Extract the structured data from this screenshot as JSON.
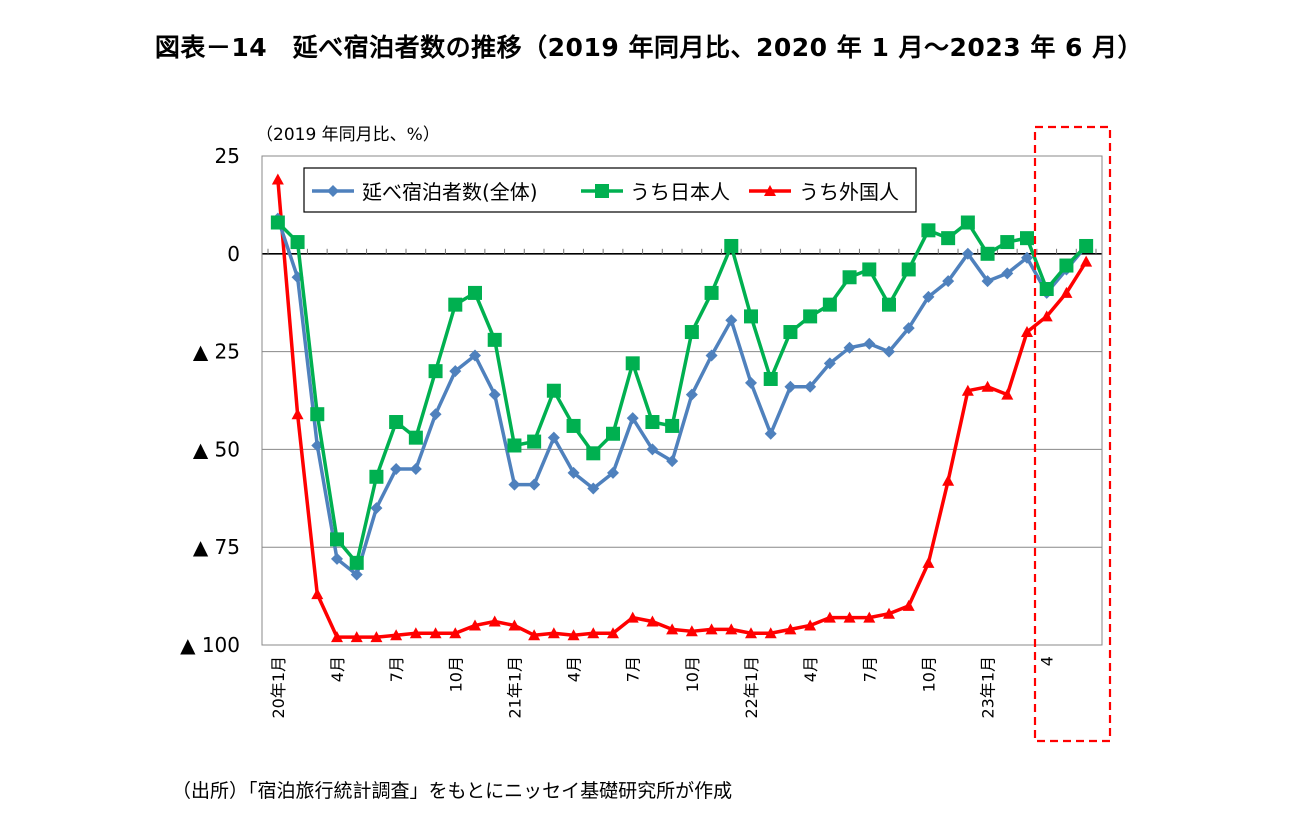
{
  "title": "図表－14　延べ宿泊者数の推移（2019 年同月比、2020 年 1 月～2023 年 6 月）",
  "source": "（出所）「宿泊旅行統計調査」をもとにニッセイ基礎研究所が作成",
  "chart_data": {
    "type": "line",
    "unit_label": "（2019 年同月比、%）",
    "x": [
      "20年1月",
      "2月",
      "3月",
      "4月",
      "5月",
      "6月",
      "7月",
      "8月",
      "9月",
      "10月",
      "11月",
      "12月",
      "21年1月",
      "2月",
      "3月",
      "4月",
      "5月",
      "6月",
      "7月",
      "8月",
      "9月",
      "10月",
      "11月",
      "12月",
      "22年1月",
      "2月",
      "3月",
      "4月",
      "5月",
      "6月",
      "7月",
      "8月",
      "9月",
      "10月",
      "11月",
      "12月",
      "23年1月",
      "2月",
      "3月",
      "4月",
      "5月",
      "6月"
    ],
    "x_tick_labels": [
      {
        "i": 0,
        "label": "20年1月"
      },
      {
        "i": 3,
        "label": "4月"
      },
      {
        "i": 6,
        "label": "7月"
      },
      {
        "i": 9,
        "label": "10月"
      },
      {
        "i": 12,
        "label": "21年1月"
      },
      {
        "i": 15,
        "label": "4月"
      },
      {
        "i": 18,
        "label": "7月"
      },
      {
        "i": 21,
        "label": "10月"
      },
      {
        "i": 24,
        "label": "22年1月"
      },
      {
        "i": 27,
        "label": "4月"
      },
      {
        "i": 30,
        "label": "7月"
      },
      {
        "i": 33,
        "label": "10月"
      },
      {
        "i": 36,
        "label": "23年1月"
      },
      {
        "i": 39,
        "label": "4"
      }
    ],
    "y_ticks": [
      {
        "value": 25,
        "label": "25"
      },
      {
        "value": 0,
        "label": "0"
      },
      {
        "value": -25,
        "label": "▲ 25"
      },
      {
        "value": -50,
        "label": "▲ 50"
      },
      {
        "value": -75,
        "label": "▲ 75"
      },
      {
        "value": -100,
        "label": "▲ 100"
      }
    ],
    "ylim": [
      -100,
      25
    ],
    "grid": true,
    "legend_position": "top-left",
    "series": [
      {
        "name": "延べ宿泊者数(全体)",
        "color": "#4F81BD",
        "marker": "diamond",
        "values": [
          9,
          -6,
          -49,
          -78,
          -82,
          -65,
          -55,
          -55,
          -41,
          -30,
          -26,
          -36,
          -59,
          -59,
          -47,
          -56,
          -60,
          -56,
          -42,
          -50,
          -53,
          -36,
          -26,
          -17,
          -33,
          -46,
          -34,
          -34,
          -28,
          -24,
          -23,
          -25,
          -19,
          -11,
          -7,
          0,
          -7,
          -5,
          -1,
          -10,
          -4,
          2
        ]
      },
      {
        "name": "うち日本人",
        "color": "#00B050",
        "marker": "square",
        "values": [
          8,
          3,
          -41,
          -73,
          -79,
          -57,
          -43,
          -47,
          -30,
          -13,
          -10,
          -22,
          -49,
          -48,
          -35,
          -44,
          -51,
          -46,
          -28,
          -43,
          -44,
          -20,
          -10,
          2,
          -16,
          -32,
          -20,
          -16,
          -13,
          -6,
          -4,
          -13,
          -4,
          6,
          4,
          8,
          0,
          3,
          4,
          -9,
          -3,
          2
        ]
      },
      {
        "name": "うち外国人",
        "color": "#FF0000",
        "marker": "triangle",
        "values": [
          19,
          -41,
          -87,
          -98,
          -98,
          -98,
          -97.5,
          -97,
          -97,
          -97,
          -95,
          -94,
          -95,
          -97.5,
          -97,
          -97.5,
          -97,
          -97,
          -93,
          -94,
          -96,
          -96.5,
          -96,
          -96,
          -97,
          -97,
          -96,
          -95,
          -93,
          -93,
          -93,
          -92,
          -90,
          -79,
          -58,
          -35,
          -34,
          -36,
          -20,
          -16,
          -10,
          -2
        ]
      }
    ]
  }
}
